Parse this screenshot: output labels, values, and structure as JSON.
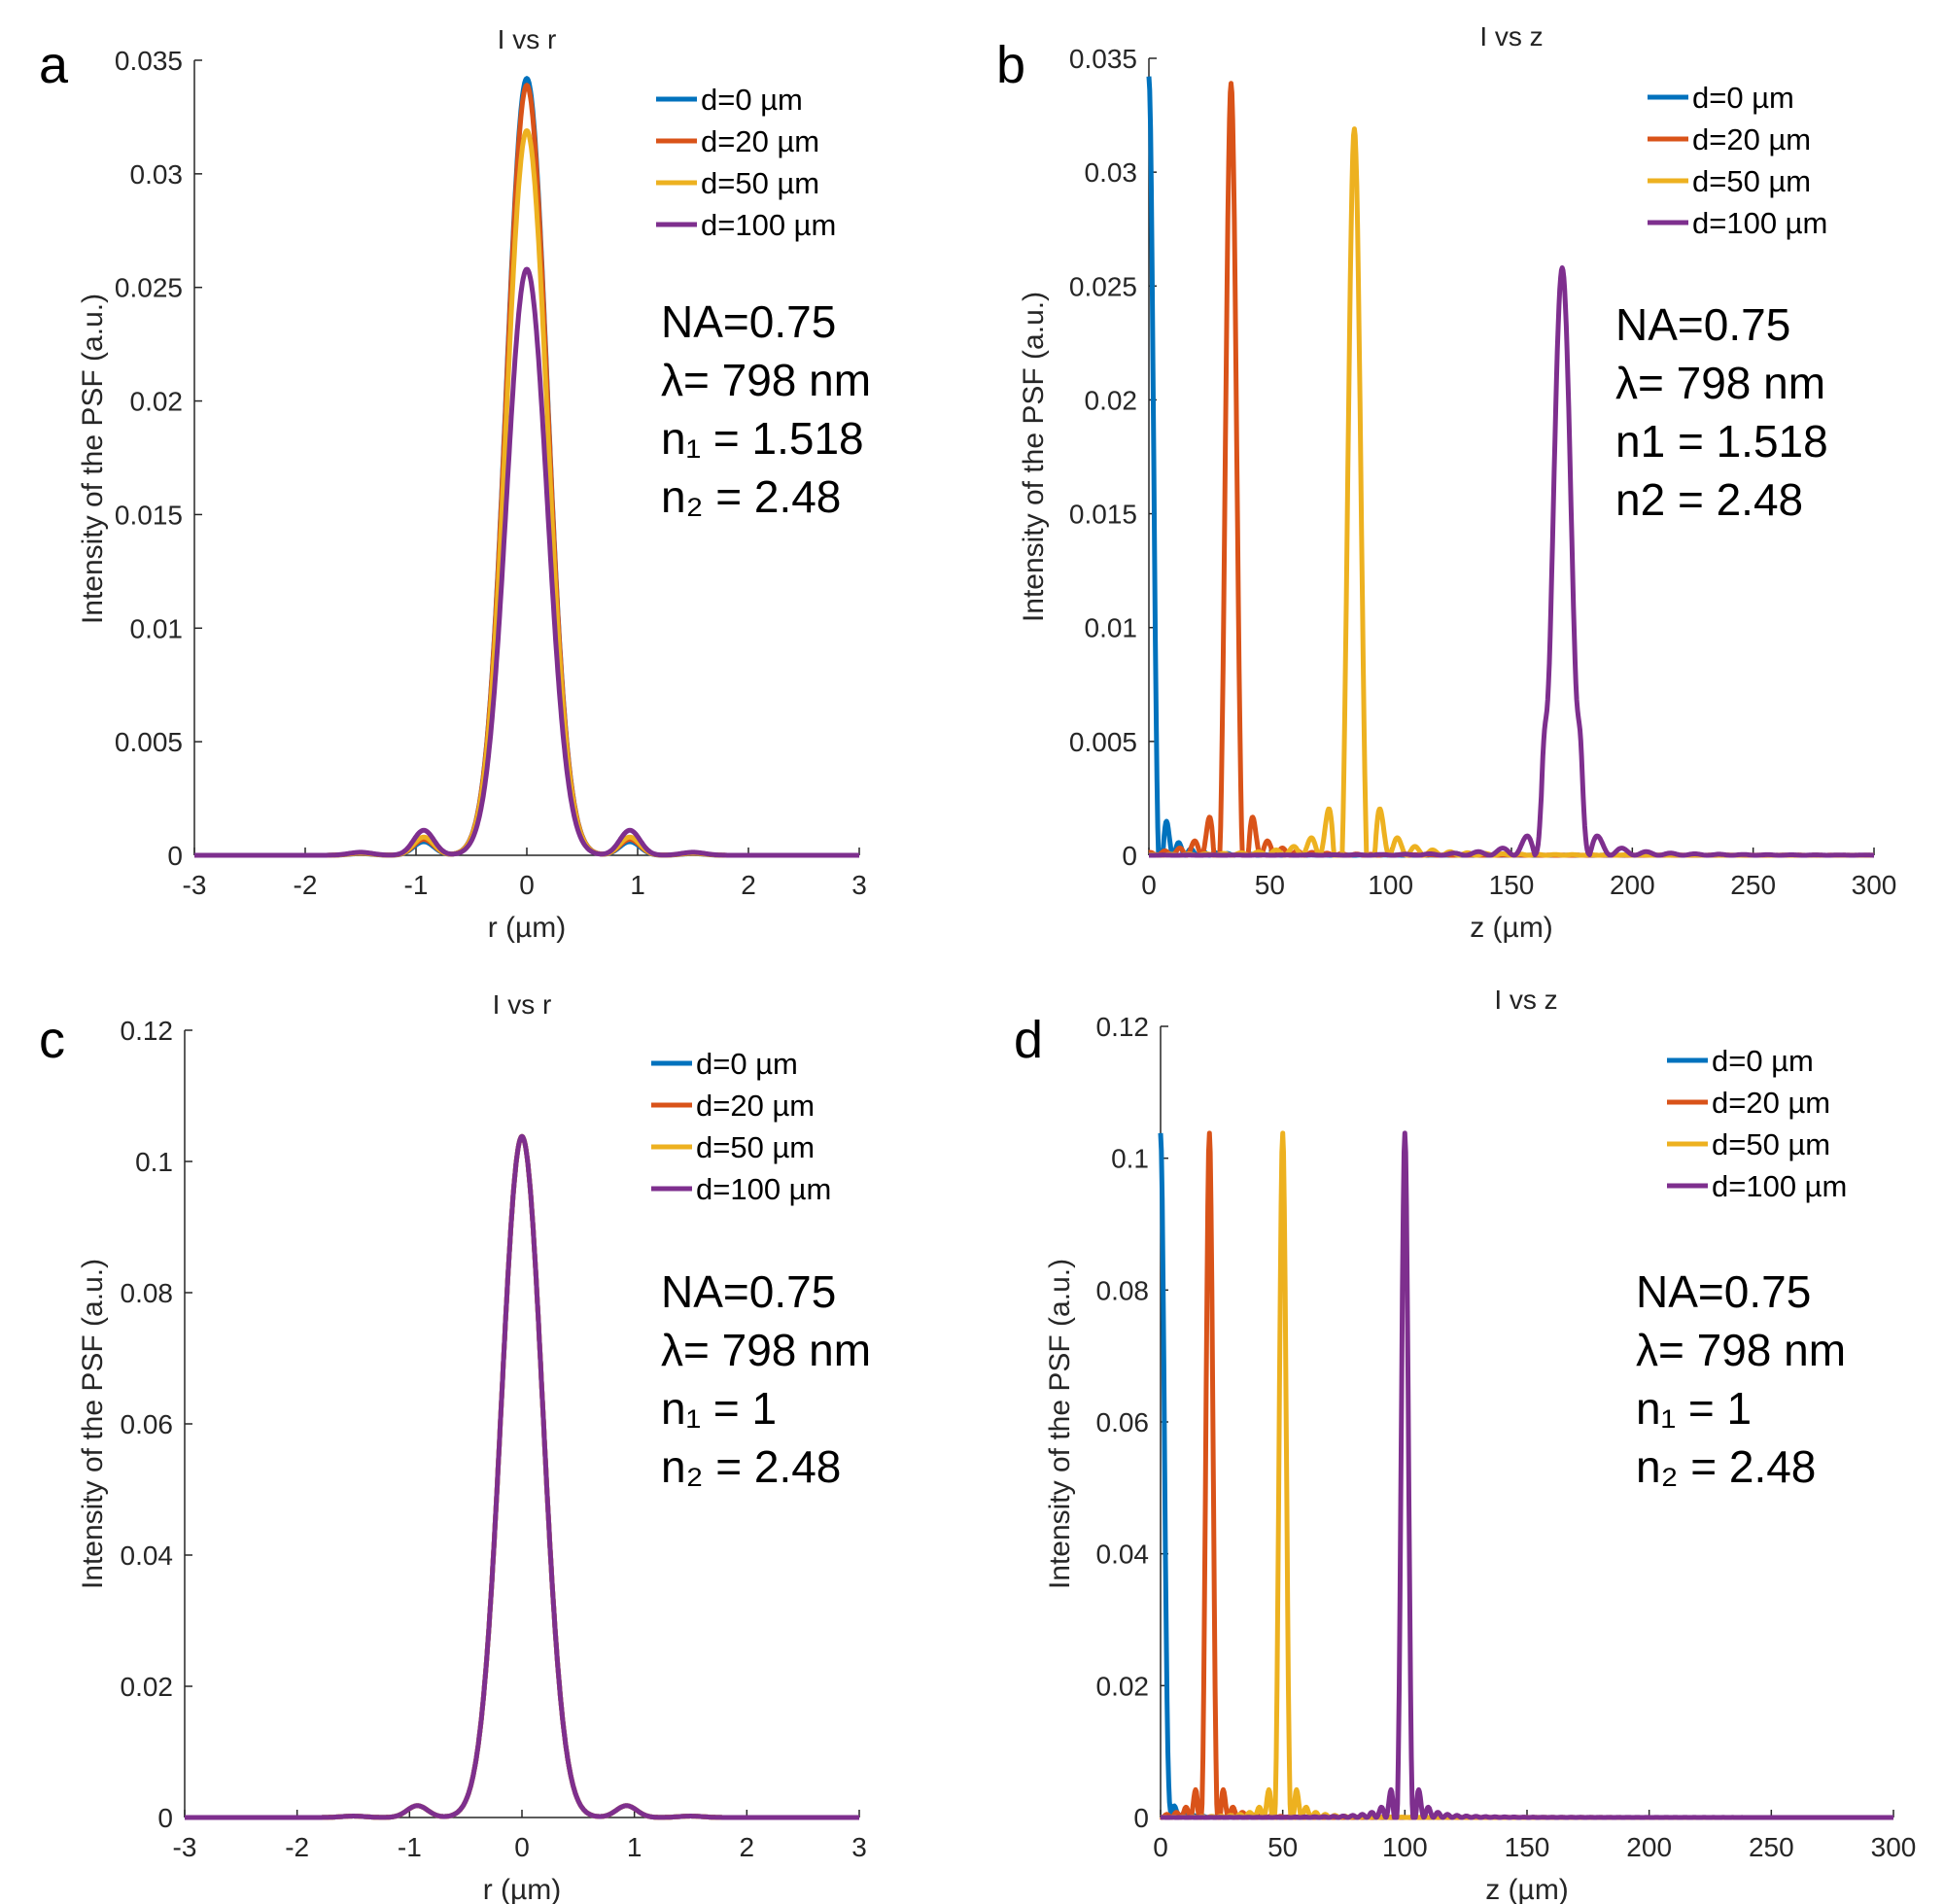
{
  "figure": {
    "panels": [
      "a",
      "b",
      "c",
      "d"
    ]
  },
  "chart_data": [
    {
      "panel": "a",
      "type": "line",
      "title": "I vs r",
      "xlabel": "r (µm)",
      "ylabel": "Intensity of the PSF (a.u.)",
      "xlim": [
        -3,
        3
      ],
      "ylim": [
        0,
        0.035
      ],
      "xticks": [
        "-3",
        "-2",
        "-1",
        "0",
        "1",
        "2",
        "3"
      ],
      "yticks": [
        "0",
        "0.005",
        "0.01",
        "0.015",
        "0.02",
        "0.025",
        "0.03",
        "0.035"
      ],
      "legend_position": "top-right",
      "annotation": [
        "NA=0.75",
        "λ= 798 nm",
        "n₁ = 1.518",
        "n₂ = 2.48"
      ],
      "series": [
        {
          "name": "d=0 µm",
          "color": "#0072BD",
          "peak_x": 0,
          "peak": 0.0342,
          "side_lobe": 0.0006
        },
        {
          "name": "d=20 µm",
          "color": "#D95319",
          "peak_x": 0,
          "peak": 0.0339,
          "side_lobe": 0.0007
        },
        {
          "name": "d=50 µm",
          "color": "#EDB120",
          "peak_x": 0,
          "peak": 0.0319,
          "side_lobe": 0.0008
        },
        {
          "name": "d=100 µm",
          "color": "#7E2F8E",
          "peak_x": 0,
          "peak": 0.0258,
          "side_lobe": 0.0011
        }
      ]
    },
    {
      "panel": "b",
      "type": "line",
      "title": "I vs z",
      "xlabel": "z (µm)",
      "ylabel": "Intensity of the PSF (a.u.)",
      "xlim": [
        0,
        300
      ],
      "ylim": [
        0,
        0.035
      ],
      "xticks": [
        "0",
        "50",
        "100",
        "150",
        "200",
        "250",
        "300"
      ],
      "yticks": [
        "0",
        "0.005",
        "0.01",
        "0.015",
        "0.02",
        "0.025",
        "0.03",
        "0.035"
      ],
      "legend_position": "top-right",
      "annotation": [
        "NA=0.75",
        "λ= 798 nm",
        "n1 = 1.518",
        "n2 = 2.48"
      ],
      "series": [
        {
          "name": "d=0 µm",
          "color": "#0072BD",
          "peak_x": 0,
          "peak": 0.0342,
          "width": 4.5,
          "side_lobe": 0.0016,
          "shoulder": 0
        },
        {
          "name": "d=20 µm",
          "color": "#D95319",
          "peak_x": 34,
          "peak": 0.0339,
          "width": 5.5,
          "side_lobe": 0.0018,
          "shoulder": 0
        },
        {
          "name": "d=50 µm",
          "color": "#EDB120",
          "peak_x": 85,
          "peak": 0.0319,
          "width": 6.5,
          "side_lobe": 0.0022,
          "shoulder": 0
        },
        {
          "name": "d=100 µm",
          "color": "#7E2F8E",
          "peak_x": 171,
          "peak": 0.0258,
          "width": 9,
          "side_lobe": 0.0009,
          "shoulder": 0.0038
        }
      ]
    },
    {
      "panel": "c",
      "type": "line",
      "title": "I vs r",
      "xlabel": "r (µm)",
      "ylabel": "Intensity of the PSF (a.u.)",
      "xlim": [
        -3,
        3
      ],
      "ylim": [
        0,
        0.12
      ],
      "xticks": [
        "-3",
        "-2",
        "-1",
        "0",
        "1",
        "2",
        "3"
      ],
      "yticks": [
        "0",
        "0.02",
        "0.04",
        "0.06",
        "0.08",
        "0.1",
        "0.12"
      ],
      "legend_position": "top-right",
      "annotation": [
        "NA=0.75",
        "λ= 798 nm",
        "n₁ = 1",
        "n₂ = 2.48"
      ],
      "series": [
        {
          "name": "d=0 µm",
          "color": "#0072BD",
          "peak_x": 0,
          "peak": 0.1038,
          "side_lobe": 0.0018
        },
        {
          "name": "d=20 µm",
          "color": "#D95319",
          "peak_x": 0,
          "peak": 0.1038,
          "side_lobe": 0.0018
        },
        {
          "name": "d=50 µm",
          "color": "#EDB120",
          "peak_x": 0,
          "peak": 0.1038,
          "side_lobe": 0.0018
        },
        {
          "name": "d=100 µm",
          "color": "#7E2F8E",
          "peak_x": 0,
          "peak": 0.1038,
          "side_lobe": 0.0018
        }
      ]
    },
    {
      "panel": "d",
      "type": "line",
      "title": "I vs z",
      "xlabel": "z (µm)",
      "ylabel": "Intensity of the PSF (a.u.)",
      "xlim": [
        0,
        300
      ],
      "ylim": [
        0,
        0.12
      ],
      "xticks": [
        "0",
        "50",
        "100",
        "150",
        "200",
        "250",
        "300"
      ],
      "yticks": [
        "0",
        "0.02",
        "0.04",
        "0.06",
        "0.08",
        "0.1",
        "0.12"
      ],
      "legend_position": "top-right",
      "annotation": [
        "NA=0.75",
        "λ= 798 nm",
        "n₁ = 1",
        "n₂ = 2.48"
      ],
      "series": [
        {
          "name": "d=0 µm",
          "color": "#0072BD",
          "peak_x": 0,
          "peak": 0.1038,
          "width": 3.5,
          "side_lobe": 0.0018,
          "shoulder": 0
        },
        {
          "name": "d=20 µm",
          "color": "#D95319",
          "peak_x": 20,
          "peak": 0.1038,
          "width": 3.5,
          "side_lobe": 0.0045,
          "shoulder": 0
        },
        {
          "name": "d=50 µm",
          "color": "#EDB120",
          "peak_x": 50,
          "peak": 0.1038,
          "width": 3.5,
          "side_lobe": 0.0045,
          "shoulder": 0
        },
        {
          "name": "d=100 µm",
          "color": "#7E2F8E",
          "peak_x": 100,
          "peak": 0.1038,
          "width": 3.5,
          "side_lobe": 0.0045,
          "shoulder": 0
        }
      ]
    }
  ]
}
